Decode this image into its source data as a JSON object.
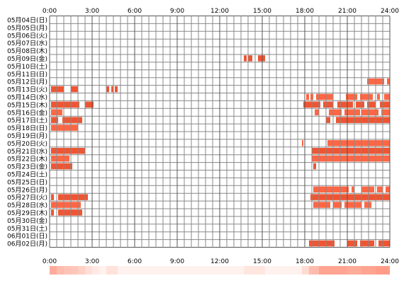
{
  "chart_data": {
    "type": "heatmap",
    "x_unit": "hour",
    "xlim": [
      0,
      24
    ],
    "x_ticks": [
      "0:00",
      "3:00",
      "6:00",
      "9:00",
      "12:00",
      "15:00",
      "18:00",
      "21:00",
      "24:00"
    ],
    "rows": [
      {
        "label": "05月04日(日)",
        "segments": []
      },
      {
        "label": "05月05日(月)",
        "segments": []
      },
      {
        "label": "05月06日(火)",
        "segments": []
      },
      {
        "label": "05月07日(水)",
        "segments": []
      },
      {
        "label": "05月08日(木)",
        "segments": []
      },
      {
        "label": "05月09日(金)",
        "segments": [
          [
            13.7,
            13.9,
            "#ee5533"
          ],
          [
            14.0,
            14.3,
            "#ee5533"
          ],
          [
            14.7,
            15.2,
            "#ee5533"
          ]
        ]
      },
      {
        "label": "05月10日(土)",
        "segments": []
      },
      {
        "label": "05月11日(日)",
        "segments": []
      },
      {
        "label": "05月12日(月)",
        "segments": [
          [
            22.4,
            23.6,
            "#ff6644"
          ],
          [
            23.8,
            24.0,
            "#ff6644"
          ]
        ]
      },
      {
        "label": "05月13日(火)",
        "segments": [
          [
            0.1,
            1.0,
            "#ee5533"
          ],
          [
            1.5,
            2.0,
            "#ee5533"
          ],
          [
            4.0,
            4.2,
            "#ee5533"
          ],
          [
            4.35,
            4.5,
            "#ee5533"
          ],
          [
            4.6,
            4.8,
            "#ee5533"
          ]
        ]
      },
      {
        "label": "05月14日(水)",
        "segments": [
          [
            18.1,
            18.3,
            "#ff6644"
          ],
          [
            18.4,
            18.6,
            "#ff6644"
          ],
          [
            18.8,
            20.0,
            "#ff6644"
          ],
          [
            20.9,
            21.7,
            "#ff6644"
          ],
          [
            21.9,
            22.8,
            "#ff6644"
          ],
          [
            23.1,
            23.3,
            "#ff6644"
          ],
          [
            23.6,
            24.0,
            "#ff6644"
          ]
        ]
      },
      {
        "label": "05月15日(木)",
        "segments": [
          [
            0.1,
            2.1,
            "#ee5533"
          ],
          [
            2.5,
            3.1,
            "#ee5533"
          ],
          [
            17.9,
            19.1,
            "#ee5533"
          ],
          [
            19.3,
            20.0,
            "#ee5533"
          ],
          [
            20.3,
            21.4,
            "#ee5533"
          ],
          [
            21.6,
            22.2,
            "#ee5533"
          ],
          [
            22.4,
            23.0,
            "#ee5533"
          ],
          [
            23.3,
            24.0,
            "#ee5533"
          ]
        ]
      },
      {
        "label": "05月16日(金)",
        "segments": [
          [
            0.1,
            0.9,
            "#ff6644"
          ],
          [
            18.7,
            19.0,
            "#ff6644"
          ],
          [
            19.7,
            20.6,
            "#ff6644"
          ],
          [
            20.8,
            21.9,
            "#ff6644"
          ],
          [
            22.0,
            23.2,
            "#ff6644"
          ],
          [
            23.4,
            24.0,
            "#ff6644"
          ]
        ]
      },
      {
        "label": "05月17日(土)",
        "segments": [
          [
            0.1,
            0.6,
            "#ee5533"
          ],
          [
            0.9,
            2.3,
            "#ee5533"
          ],
          [
            19.5,
            19.8,
            "#ee5533"
          ],
          [
            20.2,
            24.0,
            "#ee5533"
          ]
        ]
      },
      {
        "label": "05月18日(日)",
        "segments": [
          [
            0.1,
            2.0,
            "#ff6644"
          ]
        ]
      },
      {
        "label": "05月19日(月)",
        "segments": []
      },
      {
        "label": "05月20日(火)",
        "segments": [
          [
            17.8,
            17.9,
            "#ff6644"
          ],
          [
            19.6,
            24.0,
            "#ff6644"
          ]
        ]
      },
      {
        "label": "05月21日(水)",
        "segments": [
          [
            0.1,
            2.5,
            "#ee5533"
          ],
          [
            18.5,
            24.0,
            "#ee5533"
          ]
        ]
      },
      {
        "label": "05月22日(木)",
        "segments": [
          [
            0.1,
            1.4,
            "#ff6644"
          ],
          [
            18.5,
            24.0,
            "#ff6644"
          ]
        ]
      },
      {
        "label": "05月23日(金)",
        "segments": [
          [
            0.1,
            1.6,
            "#ee5533"
          ],
          [
            18.6,
            18.8,
            "#ee5533"
          ]
        ]
      },
      {
        "label": "05月24日(土)",
        "segments": []
      },
      {
        "label": "05月25日(日)",
        "segments": []
      },
      {
        "label": "05月26日(月)",
        "segments": [
          [
            18.6,
            21.1,
            "#ff6644"
          ],
          [
            21.3,
            21.5,
            "#ff6644"
          ],
          [
            22.0,
            22.9,
            "#ff6644"
          ],
          [
            23.1,
            23.5,
            "#ff6644"
          ],
          [
            23.7,
            24.0,
            "#ff6644"
          ]
        ]
      },
      {
        "label": "05月27日(火)",
        "segments": [
          [
            0.1,
            0.3,
            "#ee5533"
          ],
          [
            0.6,
            2.7,
            "#ee5533"
          ],
          [
            18.4,
            24.0,
            "#ee5533"
          ]
        ]
      },
      {
        "label": "05月28日(水)",
        "segments": [
          [
            0.1,
            2.2,
            "#ff6644"
          ],
          [
            18.6,
            19.8,
            "#ff6644"
          ],
          [
            20.0,
            20.6,
            "#ff6644"
          ],
          [
            20.8,
            22.0,
            "#ff6644"
          ],
          [
            22.2,
            22.7,
            "#ff6644"
          ]
        ]
      },
      {
        "label": "05月29日(木)",
        "segments": [
          [
            0.1,
            0.3,
            "#ee5533"
          ],
          [
            0.6,
            2.3,
            "#ee5533"
          ]
        ]
      },
      {
        "label": "05月30日(金)",
        "segments": []
      },
      {
        "label": "05月31日(土)",
        "segments": []
      },
      {
        "label": "06月01日(日)",
        "segments": []
      },
      {
        "label": "06月02日(月)",
        "segments": [
          [
            18.3,
            20.1,
            "#ee5533"
          ],
          [
            21.0,
            21.7,
            "#ee5533"
          ],
          [
            21.9,
            22.9,
            "#ee5533"
          ],
          [
            23.2,
            24.0,
            "#ee5533"
          ]
        ]
      }
    ],
    "summary_bar": {
      "color": "#ff5533",
      "bins": [
        [
          0.0,
          0.5,
          0.45
        ],
        [
          0.5,
          1.0,
          0.35
        ],
        [
          1.0,
          1.5,
          0.3
        ],
        [
          1.5,
          2.0,
          0.28
        ],
        [
          2.0,
          2.5,
          0.22
        ],
        [
          2.5,
          3.0,
          0.12
        ],
        [
          3.0,
          3.5,
          0.05
        ],
        [
          4.0,
          4.8,
          0.1
        ],
        [
          13.7,
          15.2,
          0.08
        ],
        [
          17.8,
          18.3,
          0.15
        ],
        [
          18.3,
          19.0,
          0.35
        ],
        [
          19.0,
          20.0,
          0.5
        ],
        [
          20.0,
          21.0,
          0.5
        ],
        [
          21.0,
          22.0,
          0.45
        ],
        [
          22.0,
          23.0,
          0.5
        ],
        [
          23.0,
          24.0,
          0.55
        ]
      ]
    }
  }
}
